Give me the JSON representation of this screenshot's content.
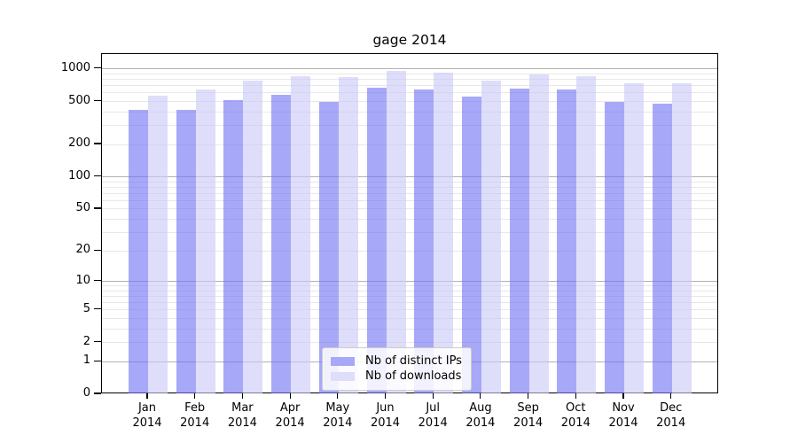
{
  "chart_data": {
    "type": "bar",
    "title": "gage 2014",
    "categories": [
      "Jan",
      "Feb",
      "Mar",
      "Apr",
      "May",
      "Jun",
      "Jul",
      "Aug",
      "Sep",
      "Oct",
      "Nov",
      "Dec"
    ],
    "category_year": "2014",
    "series": [
      {
        "name": "Nb of distinct IPs",
        "fill": "rgba(115,115,244,0.62)",
        "legend_color": "#a8a8f8",
        "values": [
          420,
          420,
          515,
          575,
          500,
          665,
          645,
          550,
          660,
          640,
          500,
          475
        ]
      },
      {
        "name": "Nb of downloads",
        "fill": "rgba(202,202,247,0.62)",
        "legend_color": "#dedefa",
        "values": [
          570,
          640,
          775,
          855,
          845,
          960,
          930,
          780,
          885,
          860,
          730,
          730
        ]
      }
    ],
    "yscale": "log1p",
    "ylim": [
      0,
      1380
    ],
    "yticks": [
      0,
      1,
      2,
      5,
      10,
      20,
      50,
      100,
      200,
      500,
      1000
    ],
    "grid": {
      "major_values": [
        1,
        10,
        100,
        1000
      ],
      "minor_color": "#e8e8e8",
      "major_color": "#b2b2b2",
      "axis_color": "#000000"
    },
    "legend_position": "lower center"
  }
}
